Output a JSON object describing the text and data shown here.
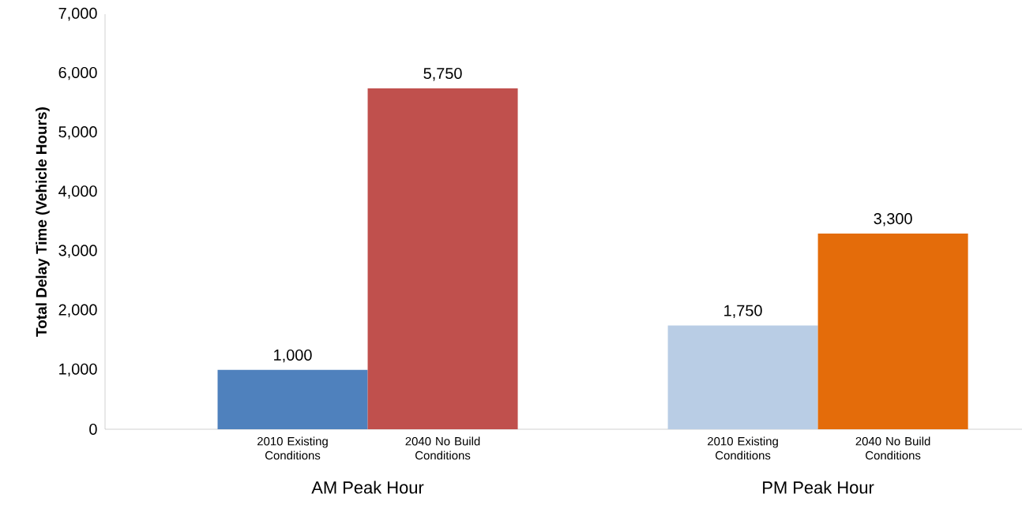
{
  "chart_data": {
    "type": "bar",
    "ylabel": "Total Delay Time (Vehicle Hours)",
    "categories": [
      "2010 Existing Conditions",
      "2040 No Build Conditions",
      "2010 Existing Conditions",
      "2040 No Build Conditions"
    ],
    "values": [
      1000,
      5750,
      1750,
      3300
    ],
    "colors": [
      "#4f81bd",
      "#c0504d",
      "#b9cde5",
      "#e46c0a"
    ],
    "value_labels": [
      "1,000",
      "5,750",
      "1,750",
      "3,300"
    ],
    "annotations": [
      "AM Peak Hour",
      "PM Peak Hour"
    ],
    "ylim": [
      0,
      7000
    ],
    "yticks": [
      0,
      {
        "value": 1000,
        "label": "1,000"
      },
      {
        "value": 2000,
        "label": "2,000"
      },
      {
        "value": 3000,
        "label": "3,000"
      },
      {
        "value": 4000,
        "label": "4,000"
      },
      {
        "value": 5000,
        "label": "5,000"
      },
      {
        "value": 6000,
        "label": "6,000"
      },
      {
        "value": 7000,
        "label": "7,000"
      }
    ],
    "grid": false
  }
}
